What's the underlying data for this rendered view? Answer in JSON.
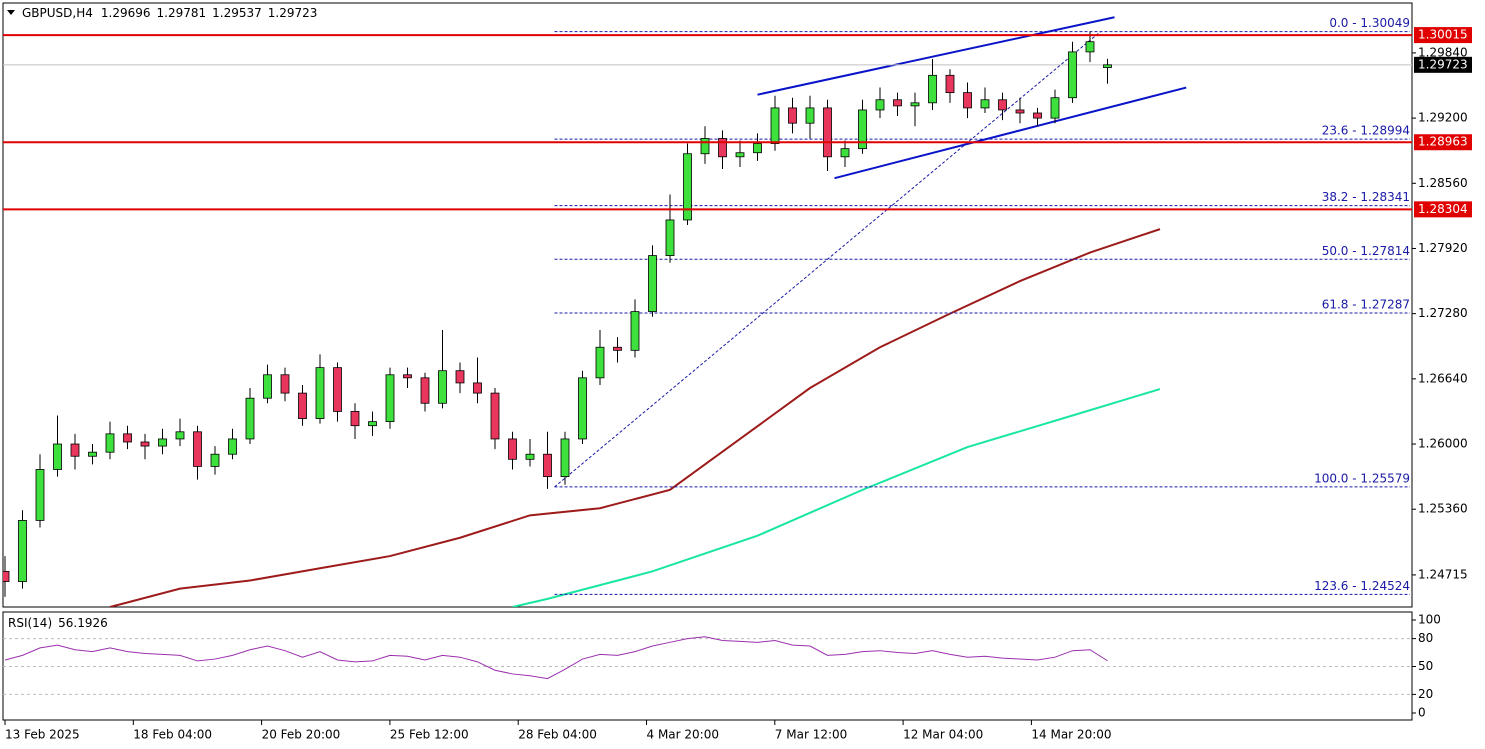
{
  "chart_data": [
    {
      "type": "candlestick",
      "title": "GBPUSD,H4",
      "open": [
        1.2475,
        1.2465,
        1.2525,
        1.2575,
        1.26,
        1.2588,
        1.2592,
        1.261,
        1.2602,
        1.2598,
        1.2605,
        1.2612,
        1.2578,
        1.259,
        1.2605,
        1.2645,
        1.2668,
        1.265,
        1.2625,
        1.2675,
        1.2632,
        1.2618,
        1.2622,
        1.2668,
        1.2665,
        1.264,
        1.2672,
        1.266,
        1.265,
        1.2605,
        1.2585,
        1.259,
        1.2568,
        1.2605,
        1.2665,
        1.2695,
        1.2692,
        1.273,
        1.2785,
        1.282,
        1.2885,
        1.29,
        1.2882,
        1.2886,
        1.2895,
        1.293,
        1.2915,
        1.293,
        1.2882,
        1.289,
        1.2928,
        1.2938,
        1.2932,
        1.2935,
        1.2962,
        1.2945,
        1.293,
        1.2938,
        1.2928,
        1.2925,
        1.292,
        1.294,
        1.2985,
        1.29696
      ],
      "high": [
        1.249,
        1.2535,
        1.259,
        1.2628,
        1.261,
        1.26,
        1.2622,
        1.2618,
        1.261,
        1.2615,
        1.2625,
        1.2618,
        1.2598,
        1.2615,
        1.2655,
        1.2678,
        1.2675,
        1.2658,
        1.2688,
        1.268,
        1.264,
        1.2632,
        1.2675,
        1.2675,
        1.267,
        1.2712,
        1.268,
        1.2685,
        1.2655,
        1.2612,
        1.2605,
        1.2612,
        1.2612,
        1.2672,
        1.2712,
        1.2705,
        1.2742,
        1.2795,
        1.2845,
        1.2895,
        1.2912,
        1.2908,
        1.2898,
        1.2905,
        1.2942,
        1.294,
        1.2942,
        1.2938,
        1.2898,
        1.2938,
        1.295,
        1.2945,
        1.2945,
        1.2978,
        1.2968,
        1.2955,
        1.295,
        1.2945,
        1.294,
        1.293,
        1.2948,
        1.2995,
        1.3005,
        1.29781
      ],
      "low": [
        1.245,
        1.2458,
        1.2518,
        1.2568,
        1.2575,
        1.258,
        1.2585,
        1.2595,
        1.2585,
        1.259,
        1.2598,
        1.2565,
        1.257,
        1.2585,
        1.26,
        1.264,
        1.2642,
        1.2618,
        1.262,
        1.2622,
        1.2605,
        1.2608,
        1.2615,
        1.2655,
        1.2632,
        1.2635,
        1.265,
        1.264,
        1.2595,
        1.2575,
        1.2578,
        1.2556,
        1.256,
        1.26,
        1.2658,
        1.268,
        1.2685,
        1.2725,
        1.2778,
        1.2815,
        1.2875,
        1.287,
        1.2872,
        1.2878,
        1.2888,
        1.2905,
        1.29,
        1.2868,
        1.2872,
        1.2885,
        1.292,
        1.2922,
        1.2912,
        1.2928,
        1.2935,
        1.292,
        1.2925,
        1.2918,
        1.2915,
        1.2912,
        1.2915,
        1.2935,
        1.2975,
        1.29537
      ],
      "close": [
        1.2465,
        1.2525,
        1.2575,
        1.26,
        1.2588,
        1.2592,
        1.261,
        1.2602,
        1.2598,
        1.2605,
        1.2612,
        1.2578,
        1.259,
        1.2605,
        1.2645,
        1.2668,
        1.265,
        1.2625,
        1.2675,
        1.2632,
        1.2618,
        1.2622,
        1.2668,
        1.2665,
        1.264,
        1.2672,
        1.266,
        1.265,
        1.2605,
        1.2585,
        1.259,
        1.2568,
        1.2605,
        1.2665,
        1.2695,
        1.2692,
        1.273,
        1.2785,
        1.282,
        1.2885,
        1.29,
        1.2882,
        1.2886,
        1.2895,
        1.293,
        1.2915,
        1.293,
        1.2882,
        1.289,
        1.2928,
        1.2938,
        1.2932,
        1.2935,
        1.2962,
        1.2945,
        1.293,
        1.2938,
        1.2928,
        1.2925,
        1.292,
        1.294,
        1.2985,
        1.2995,
        1.29723
      ],
      "up_color": "#3ee03e",
      "down_color": "#e8365d",
      "ylim": [
        1.244,
        1.3033
      ],
      "yticks": [
        {
          "value": 1.2984,
          "label": "1.29840"
        },
        {
          "value": 1.292,
          "label": "1.29200"
        },
        {
          "value": 1.2856,
          "label": "1.28560"
        },
        {
          "value": 1.2792,
          "label": "1.27920"
        },
        {
          "value": 1.2728,
          "label": "1.27280"
        },
        {
          "value": 1.2664,
          "label": "1.26640"
        },
        {
          "value": 1.26,
          "label": "1.26000"
        },
        {
          "value": 1.2536,
          "label": "1.25360"
        },
        {
          "value": 1.24715,
          "label": "1.24715"
        }
      ],
      "xtick_labels": [
        "13 Feb 2025",
        "18 Feb 04:00",
        "20 Feb 20:00",
        "25 Feb 12:00",
        "28 Feb 04:00",
        "4 Mar 20:00",
        "7 Mar 12:00",
        "12 Mar 04:00",
        "14 Mar 20:00"
      ],
      "moving_averages": [
        {
          "color": "#9e1b1b",
          "x": [
            6,
            10,
            14,
            18,
            22,
            26,
            30,
            34,
            38,
            42,
            46,
            50,
            54,
            58,
            62,
            66
          ],
          "values": [
            1.244,
            1.2458,
            1.2466,
            1.2478,
            1.249,
            1.2508,
            1.253,
            1.2537,
            1.2555,
            1.2605,
            1.2655,
            1.2695,
            1.2728,
            1.276,
            1.2788,
            1.2811
          ]
        },
        {
          "color": "#19e6a0",
          "x": [
            29,
            31,
            37,
            43,
            49,
            55,
            61,
            66
          ],
          "values": [
            1.244,
            1.2448,
            1.2475,
            1.251,
            1.2555,
            1.2597,
            1.2628,
            1.2654
          ]
        }
      ],
      "levels": [
        {
          "value": 1.30015,
          "color": "#e00000"
        },
        {
          "value": 1.28963,
          "color": "#e00000"
        },
        {
          "value": 1.28304,
          "color": "#e00000"
        }
      ],
      "fibonacci": {
        "color": "#1a1aa6",
        "x": [
          31.4,
          62.6
        ],
        "levels": [
          {
            "value": 1.30049,
            "label": "0.0 - 1.30049"
          },
          {
            "value": 1.28994,
            "label": "23.6 - 1.28994"
          },
          {
            "value": 1.28341,
            "label": "38.2 - 1.28341"
          },
          {
            "value": 1.27814,
            "label": "50.0 - 1.27814"
          },
          {
            "value": 1.27287,
            "label": "61.8 - 1.27287"
          },
          {
            "value": 1.25579,
            "label": "100.0 - 1.25579"
          },
          {
            "value": 1.24524,
            "label": "123.6 - 1.24524"
          }
        ]
      },
      "channel": {
        "color": "#0a14c8",
        "lines": [
          {
            "x": [
              43,
              63.4
            ],
            "y": [
              1.2943,
              1.3019
            ]
          },
          {
            "x": [
              47.4,
              67.5
            ],
            "y": [
              1.2861,
              1.295
            ]
          }
        ]
      }
    },
    {
      "type": "line",
      "title": "RSI(14)",
      "color": "#9b2fae",
      "values": [
        57,
        62,
        70,
        73,
        68,
        66,
        70,
        66,
        64,
        63,
        62,
        56,
        58,
        62,
        68,
        72,
        67,
        60,
        66,
        57,
        55,
        56,
        62,
        61,
        57,
        62,
        60,
        55,
        46,
        42,
        40,
        37,
        47,
        58,
        63,
        62,
        66,
        72,
        76,
        80,
        82,
        78,
        77,
        76,
        78,
        73,
        72,
        62,
        63,
        66,
        67,
        65,
        64,
        67,
        63,
        60,
        61,
        59,
        58,
        57,
        60,
        67,
        68,
        56.1926
      ],
      "ylim": [
        0,
        100
      ],
      "yticks": [
        100,
        80,
        50,
        20,
        0
      ]
    }
  ]
}
